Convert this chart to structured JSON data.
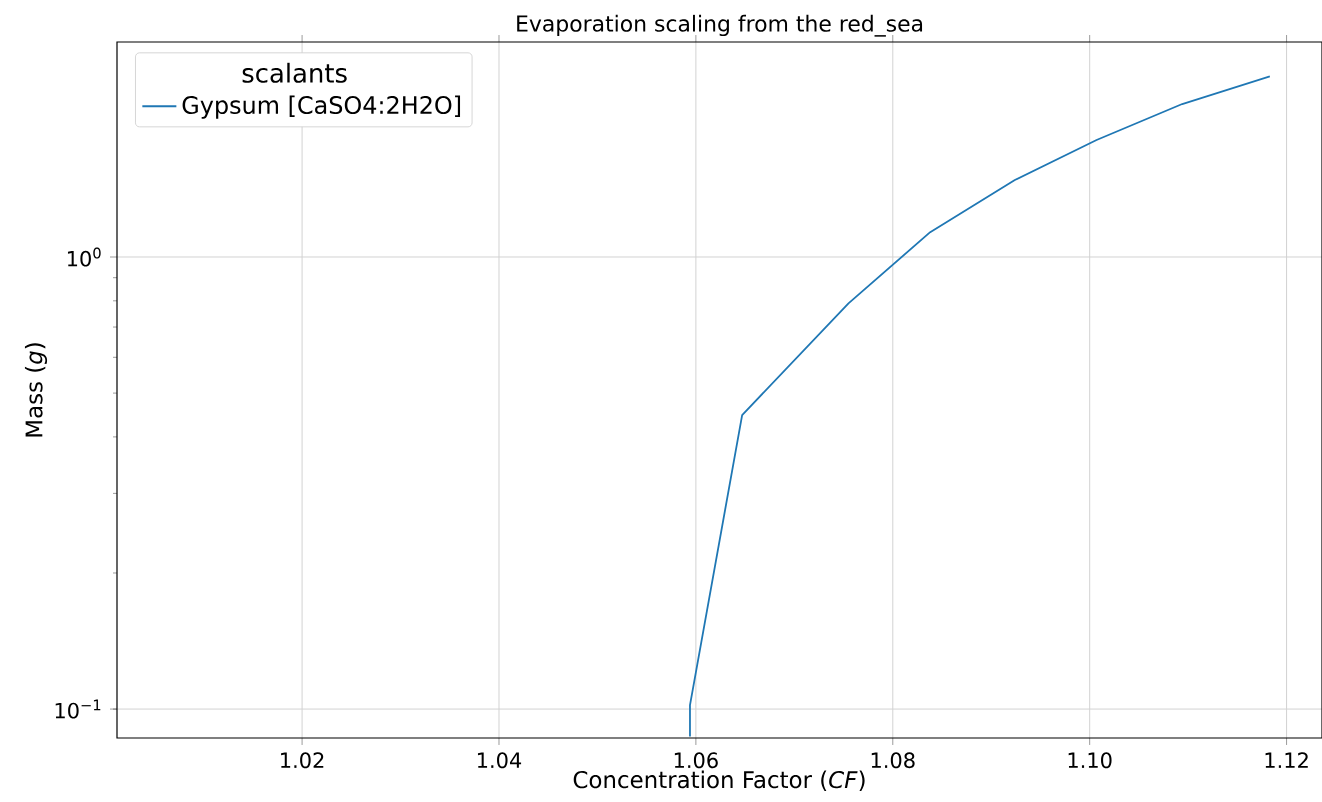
{
  "chart_data": {
    "type": "line",
    "title": "Evaporation scaling from the red_sea",
    "xlabel": "Concentration Factor (*CF*)",
    "ylabel": "Mass (*g*)",
    "legend_title": "scalants",
    "x": [
      1.0594,
      1.0594,
      1.0647,
      1.0755,
      1.0838,
      1.0924,
      1.1007,
      1.1094,
      1.1183
    ],
    "series": [
      {
        "name": "Gypsum [CaSO4:2H2O]",
        "color": "#1f77b4",
        "values": [
          0.087,
          0.102,
          0.447,
          0.79,
          1.135,
          1.48,
          1.815,
          2.18,
          2.51
        ]
      }
    ],
    "xlim": [
      1.0012,
      1.1236
    ],
    "ylim": [
      0.0863,
      2.99
    ],
    "xticks": [
      1.02,
      1.04,
      1.06,
      1.08,
      {
        "value": 1.1,
        "label": "1.10"
      },
      1.12
    ],
    "yticks": [
      {
        "value": 0.1,
        "label": "10$^{−1}$"
      },
      {
        "value": 1,
        "label": "10$^{0}$"
      }
    ],
    "log": "y",
    "grid": true,
    "legend": "top left",
    "marker": "none",
    "line_style": "solid"
  }
}
